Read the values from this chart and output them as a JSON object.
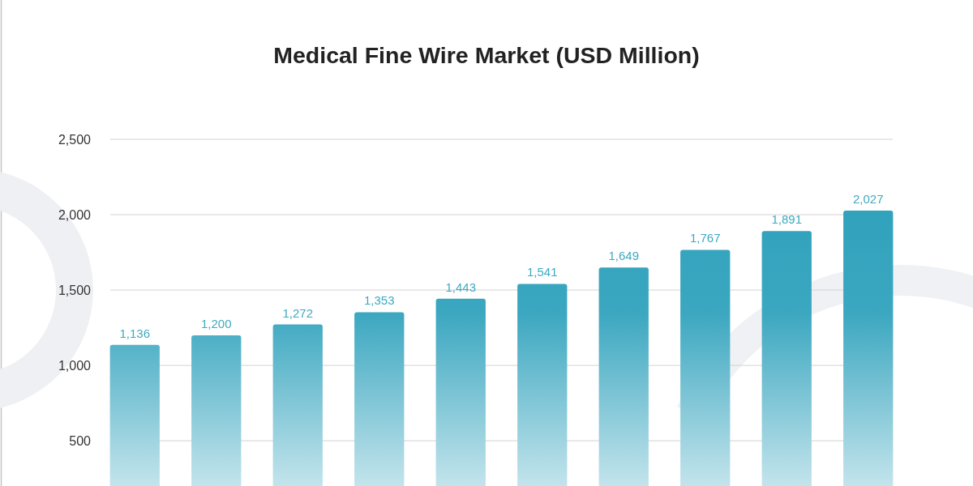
{
  "chart_data": {
    "type": "bar",
    "title": "Medical Fine Wire Market (USD Million)",
    "categories": [
      null,
      null,
      null,
      null,
      null,
      null,
      null,
      null,
      null,
      null
    ],
    "values": [
      1136,
      1200,
      1272,
      1353,
      1443,
      1541,
      1649,
      1767,
      1891,
      2027
    ],
    "value_labels": [
      "1,136",
      "1,200",
      "1,272",
      "1,353",
      "1,443",
      "1,541",
      "1,649",
      "1,767",
      "1,891",
      "2,027"
    ],
    "color": "#2a9fba",
    "ylim": [
      200,
      2500
    ],
    "yticks": [
      500,
      {
        "value": 1000,
        "label": "1,000"
      },
      {
        "value": 1500,
        "label": "1,500"
      },
      {
        "value": 2000,
        "label": "2,000"
      },
      {
        "value": 2500,
        "label": "2,500"
      }
    ],
    "grid": "y"
  }
}
